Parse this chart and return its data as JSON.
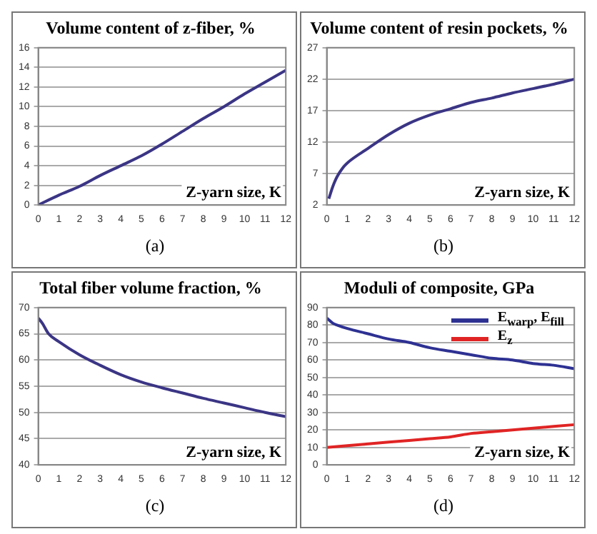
{
  "chart_data": [
    {
      "type": "line",
      "title": "Volume content of z-fiber, %",
      "xlabel": "Z-yarn size, K",
      "annotations": [
        "(a)"
      ],
      "grid": "y",
      "marker": "none",
      "line_style": "solid",
      "legend": false,
      "xlim": [
        0,
        12
      ],
      "xticks": [
        0,
        1,
        2,
        3,
        4,
        5,
        6,
        7,
        8,
        9,
        10,
        11,
        12
      ],
      "ylim": [
        0,
        16
      ],
      "yticks": [
        0,
        2,
        4,
        6,
        8,
        10,
        12,
        14,
        16
      ],
      "series": [
        {
          "color": "#3b3585",
          "x": [
            0,
            1,
            2,
            3,
            4,
            5,
            6,
            7,
            8,
            9,
            10,
            11,
            12
          ],
          "values": [
            0,
            1,
            1.9,
            3,
            4,
            5,
            6.2,
            7.5,
            8.8,
            10,
            11.3,
            12.5,
            13.7
          ]
        }
      ]
    },
    {
      "type": "line",
      "title": "Volume content of resin pockets, %",
      "xlabel": "Z-yarn size, K",
      "annotations": [
        "(b)"
      ],
      "grid": "y",
      "marker": "none",
      "line_style": "solid",
      "legend": false,
      "xlim": [
        0,
        12
      ],
      "xticks": [
        0,
        1,
        2,
        3,
        4,
        5,
        6,
        7,
        8,
        9,
        10,
        11,
        12
      ],
      "ylim": [
        2,
        27
      ],
      "yticks": [
        2,
        7,
        12,
        17,
        22,
        27
      ],
      "series": [
        {
          "color": "#3b3585",
          "x": [
            0.1,
            0.3,
            0.5,
            0.8,
            1,
            2,
            3,
            4,
            5,
            6,
            7,
            8,
            9,
            10,
            11,
            12
          ],
          "values": [
            3,
            5,
            6.5,
            8,
            8.7,
            11,
            13.2,
            15,
            16.3,
            17.3,
            18.3,
            19,
            19.8,
            20.5,
            21.2,
            22
          ]
        }
      ]
    },
    {
      "type": "line",
      "title": "Total fiber volume fraction, %",
      "xlabel": "Z-yarn size, K",
      "annotations": [
        "(c)"
      ],
      "grid": "y",
      "marker": "none",
      "line_style": "solid",
      "legend": false,
      "xlim": [
        0,
        12
      ],
      "xticks": [
        0,
        1,
        2,
        3,
        4,
        5,
        6,
        7,
        8,
        9,
        10,
        11,
        12
      ],
      "ylim": [
        40,
        70
      ],
      "yticks": [
        40,
        45,
        50,
        55,
        60,
        65,
        70
      ],
      "series": [
        {
          "color": "#3b3585",
          "x": [
            0,
            0.2,
            0.5,
            1,
            2,
            3,
            4,
            5,
            6,
            7,
            8,
            9,
            10,
            11,
            12
          ],
          "values": [
            68,
            67,
            65,
            63.5,
            61,
            59,
            57.2,
            55.8,
            54.7,
            53.7,
            52.7,
            51.8,
            50.9,
            50,
            49.2
          ]
        }
      ]
    },
    {
      "type": "line",
      "title": "Moduli of composite, GPa",
      "xlabel": "Z-yarn size, K",
      "annotations": [
        "(d)"
      ],
      "grid": "y",
      "marker": "none",
      "line_style": "solid",
      "legend": "top right",
      "xlim": [
        0,
        12
      ],
      "xticks": [
        0,
        1,
        2,
        3,
        4,
        5,
        6,
        7,
        8,
        9,
        10,
        11,
        12
      ],
      "ylim": [
        0,
        90
      ],
      "yticks": [
        0,
        10,
        20,
        30,
        40,
        50,
        60,
        70,
        80,
        90
      ],
      "series": [
        {
          "name": "E$_{warp}$, E$_{fill}$",
          "color": "#2e3192",
          "x": [
            0,
            0.3,
            0.5,
            1,
            2,
            3,
            4,
            5,
            6,
            7,
            8,
            9,
            10,
            11,
            12
          ],
          "values": [
            84,
            81,
            80,
            78,
            75,
            72,
            70,
            67,
            65,
            63,
            61,
            60,
            58,
            57,
            55
          ]
        },
        {
          "name": "E$_{z}$",
          "color": "#e02424",
          "x": [
            0,
            1,
            2,
            3,
            4,
            5,
            6,
            7,
            8,
            9,
            10,
            11,
            12
          ],
          "values": [
            10,
            11,
            12,
            13,
            14,
            15,
            16,
            18,
            19,
            20,
            21,
            22,
            23
          ]
        }
      ]
    }
  ]
}
